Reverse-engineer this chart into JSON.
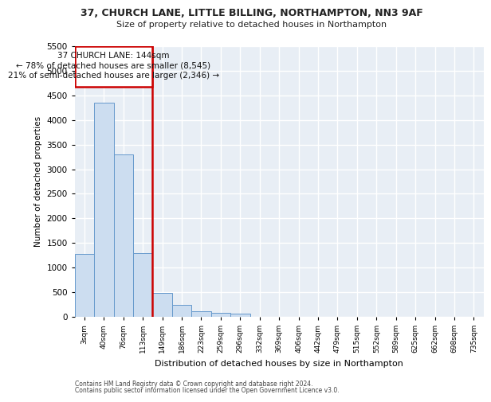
{
  "title_line1": "37, CHURCH LANE, LITTLE BILLING, NORTHAMPTON, NN3 9AF",
  "title_line2": "Size of property relative to detached houses in Northampton",
  "xlabel": "Distribution of detached houses by size in Northampton",
  "ylabel": "Number of detached properties",
  "footer_line1": "Contains HM Land Registry data © Crown copyright and database right 2024.",
  "footer_line2": "Contains public sector information licensed under the Open Government Licence v3.0.",
  "categories": [
    "3sqm",
    "40sqm",
    "76sqm",
    "113sqm",
    "149sqm",
    "186sqm",
    "223sqm",
    "259sqm",
    "296sqm",
    "332sqm",
    "369sqm",
    "406sqm",
    "442sqm",
    "479sqm",
    "515sqm",
    "552sqm",
    "589sqm",
    "625sqm",
    "662sqm",
    "698sqm",
    "735sqm"
  ],
  "values": [
    1280,
    4350,
    3300,
    1300,
    490,
    240,
    110,
    75,
    60,
    0,
    0,
    0,
    0,
    0,
    0,
    0,
    0,
    0,
    0,
    0,
    0
  ],
  "bar_color": "#ccddf0",
  "bar_edge_color": "#6699cc",
  "vline_pos": 3.5,
  "vline_color": "#cc0000",
  "annotation_text_line1": "37 CHURCH LANE: 144sqm",
  "annotation_text_line2": "← 78% of detached houses are smaller (8,545)",
  "annotation_text_line3": "21% of semi-detached houses are larger (2,346) →",
  "annotation_box_color": "#cc0000",
  "ylim": [
    0,
    5500
  ],
  "yticks": [
    0,
    500,
    1000,
    1500,
    2000,
    2500,
    3000,
    3500,
    4000,
    4500,
    5000,
    5500
  ],
  "background_color": "#e8eef5",
  "grid_color": "#ffffff",
  "fig_bg": "#ffffff"
}
